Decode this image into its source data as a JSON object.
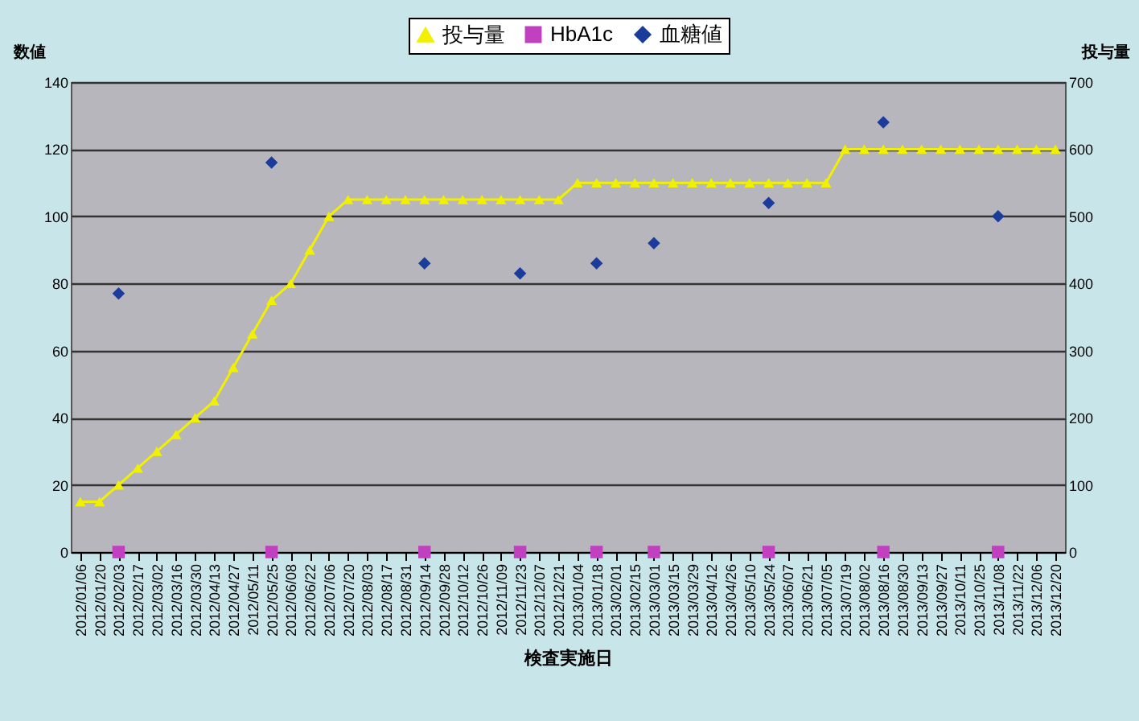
{
  "chart_data": {
    "type": "line",
    "xlabel": "検査実施日",
    "ylabel": "数値",
    "y2label": "投与量",
    "categories": [
      "2012/01/06",
      "2012/01/20",
      "2012/02/03",
      "2012/02/17",
      "2012/03/02",
      "2012/03/16",
      "2012/03/30",
      "2012/04/13",
      "2012/04/27",
      "2012/05/11",
      "2012/05/25",
      "2012/06/08",
      "2012/06/22",
      "2012/07/06",
      "2012/07/20",
      "2012/08/03",
      "2012/08/17",
      "2012/08/31",
      "2012/09/14",
      "2012/09/28",
      "2012/10/12",
      "2012/10/26",
      "2012/11/09",
      "2012/11/23",
      "2012/12/07",
      "2012/12/21",
      "2013/01/04",
      "2013/01/18",
      "2013/02/01",
      "2013/02/15",
      "2013/03/01",
      "2013/03/15",
      "2013/03/29",
      "2013/04/12",
      "2013/04/26",
      "2013/05/10",
      "2013/05/24",
      "2013/06/07",
      "2013/06/21",
      "2013/07/05",
      "2013/07/19",
      "2013/08/02",
      "2013/08/16",
      "2013/08/30",
      "2013/09/13",
      "2013/09/27",
      "2013/10/11",
      "2013/10/25",
      "2013/11/08",
      "2013/11/22",
      "2013/12/06",
      "2013/12/20"
    ],
    "series": [
      {
        "name": "投与量",
        "axis": "y2",
        "marker": "triangle",
        "color": "#f0f000",
        "values": [
          75,
          75,
          100,
          125,
          150,
          175,
          200,
          225,
          275,
          325,
          375,
          400,
          450,
          500,
          525,
          525,
          525,
          525,
          525,
          525,
          525,
          525,
          525,
          525,
          525,
          525,
          550,
          550,
          550,
          550,
          550,
          550,
          550,
          550,
          550,
          550,
          550,
          550,
          550,
          550,
          600,
          600,
          600,
          600,
          600,
          600,
          600,
          600,
          600,
          600,
          600,
          600
        ]
      },
      {
        "name": "HbA1c",
        "type": "scatter",
        "marker": "square",
        "color": "#c040c0",
        "values": [
          null,
          null,
          0,
          null,
          null,
          null,
          null,
          null,
          null,
          null,
          0,
          null,
          null,
          null,
          null,
          null,
          null,
          null,
          0,
          null,
          null,
          null,
          null,
          0,
          null,
          null,
          null,
          0,
          null,
          null,
          0,
          null,
          null,
          null,
          null,
          null,
          0,
          null,
          null,
          null,
          null,
          null,
          0,
          null,
          null,
          null,
          null,
          null,
          0,
          null,
          null,
          null
        ]
      },
      {
        "name": "血糖値",
        "type": "scatter",
        "marker": "diamond",
        "color": "#1c3c9c",
        "values": [
          null,
          null,
          77,
          null,
          null,
          null,
          null,
          null,
          null,
          null,
          116,
          null,
          null,
          null,
          null,
          null,
          null,
          null,
          86,
          null,
          null,
          null,
          null,
          83,
          null,
          null,
          null,
          86,
          null,
          null,
          92,
          null,
          null,
          null,
          null,
          null,
          104,
          null,
          null,
          null,
          null,
          null,
          128,
          null,
          null,
          null,
          null,
          null,
          100,
          null,
          null,
          null
        ]
      }
    ],
    "ylim": [
      0,
      140
    ],
    "yticks": [
      0,
      20,
      40,
      60,
      80,
      100,
      120,
      140
    ],
    "y2lim": [
      0,
      700
    ],
    "y2ticks": [
      0,
      100,
      200,
      300,
      400,
      500,
      600,
      700
    ],
    "grid": "y",
    "legend": "top"
  }
}
